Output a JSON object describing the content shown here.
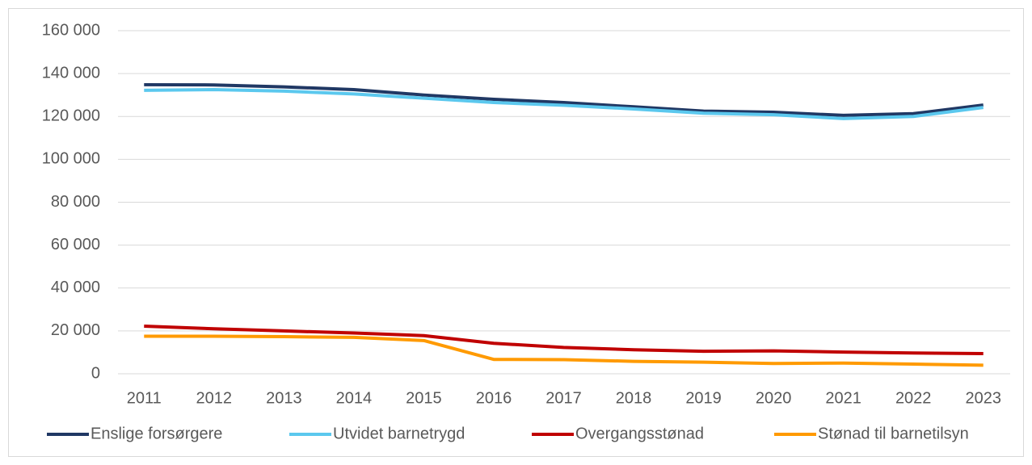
{
  "chart_data": {
    "type": "line",
    "categories": [
      "2011",
      "2012",
      "2013",
      "2014",
      "2015",
      "2016",
      "2017",
      "2018",
      "2019",
      "2020",
      "2021",
      "2022",
      "2023"
    ],
    "series": [
      {
        "name": "Enslige forsørgere",
        "color": "#203864",
        "values": [
          134800,
          134700,
          133800,
          132500,
          130000,
          128000,
          126500,
          124500,
          122500,
          122000,
          120500,
          121300,
          125300
        ]
      },
      {
        "name": "Utvidet barnetrygd",
        "color": "#5bc8ee",
        "values": [
          132200,
          132500,
          131800,
          130500,
          128500,
          126500,
          125200,
          123500,
          121500,
          120800,
          119000,
          120000,
          124200
        ]
      },
      {
        "name": "Overgangsstønad",
        "color": "#c00000",
        "values": [
          22200,
          21000,
          20000,
          19000,
          17800,
          14200,
          12300,
          11200,
          10500,
          10700,
          10100,
          9700,
          9400
        ]
      },
      {
        "name": "Stønad til barnetilsyn",
        "color": "#ff9a00",
        "values": [
          17500,
          17500,
          17300,
          17000,
          15500,
          6700,
          6600,
          5800,
          5400,
          4800,
          5000,
          4500,
          4000
        ]
      }
    ],
    "ylim": [
      0,
      160000
    ],
    "yticks": [
      0,
      {
        "value": 20000,
        "label": "20 000"
      },
      {
        "value": 40000,
        "label": "40 000"
      },
      {
        "value": 60000,
        "label": "60 000"
      },
      {
        "value": 80000,
        "label": "80 000"
      },
      {
        "value": 100000,
        "label": "100 000"
      },
      {
        "value": 120000,
        "label": "120 000"
      },
      {
        "value": 140000,
        "label": "140 000"
      },
      {
        "value": 160000,
        "label": "160 000"
      }
    ],
    "grid": true,
    "legend": "bottom"
  }
}
